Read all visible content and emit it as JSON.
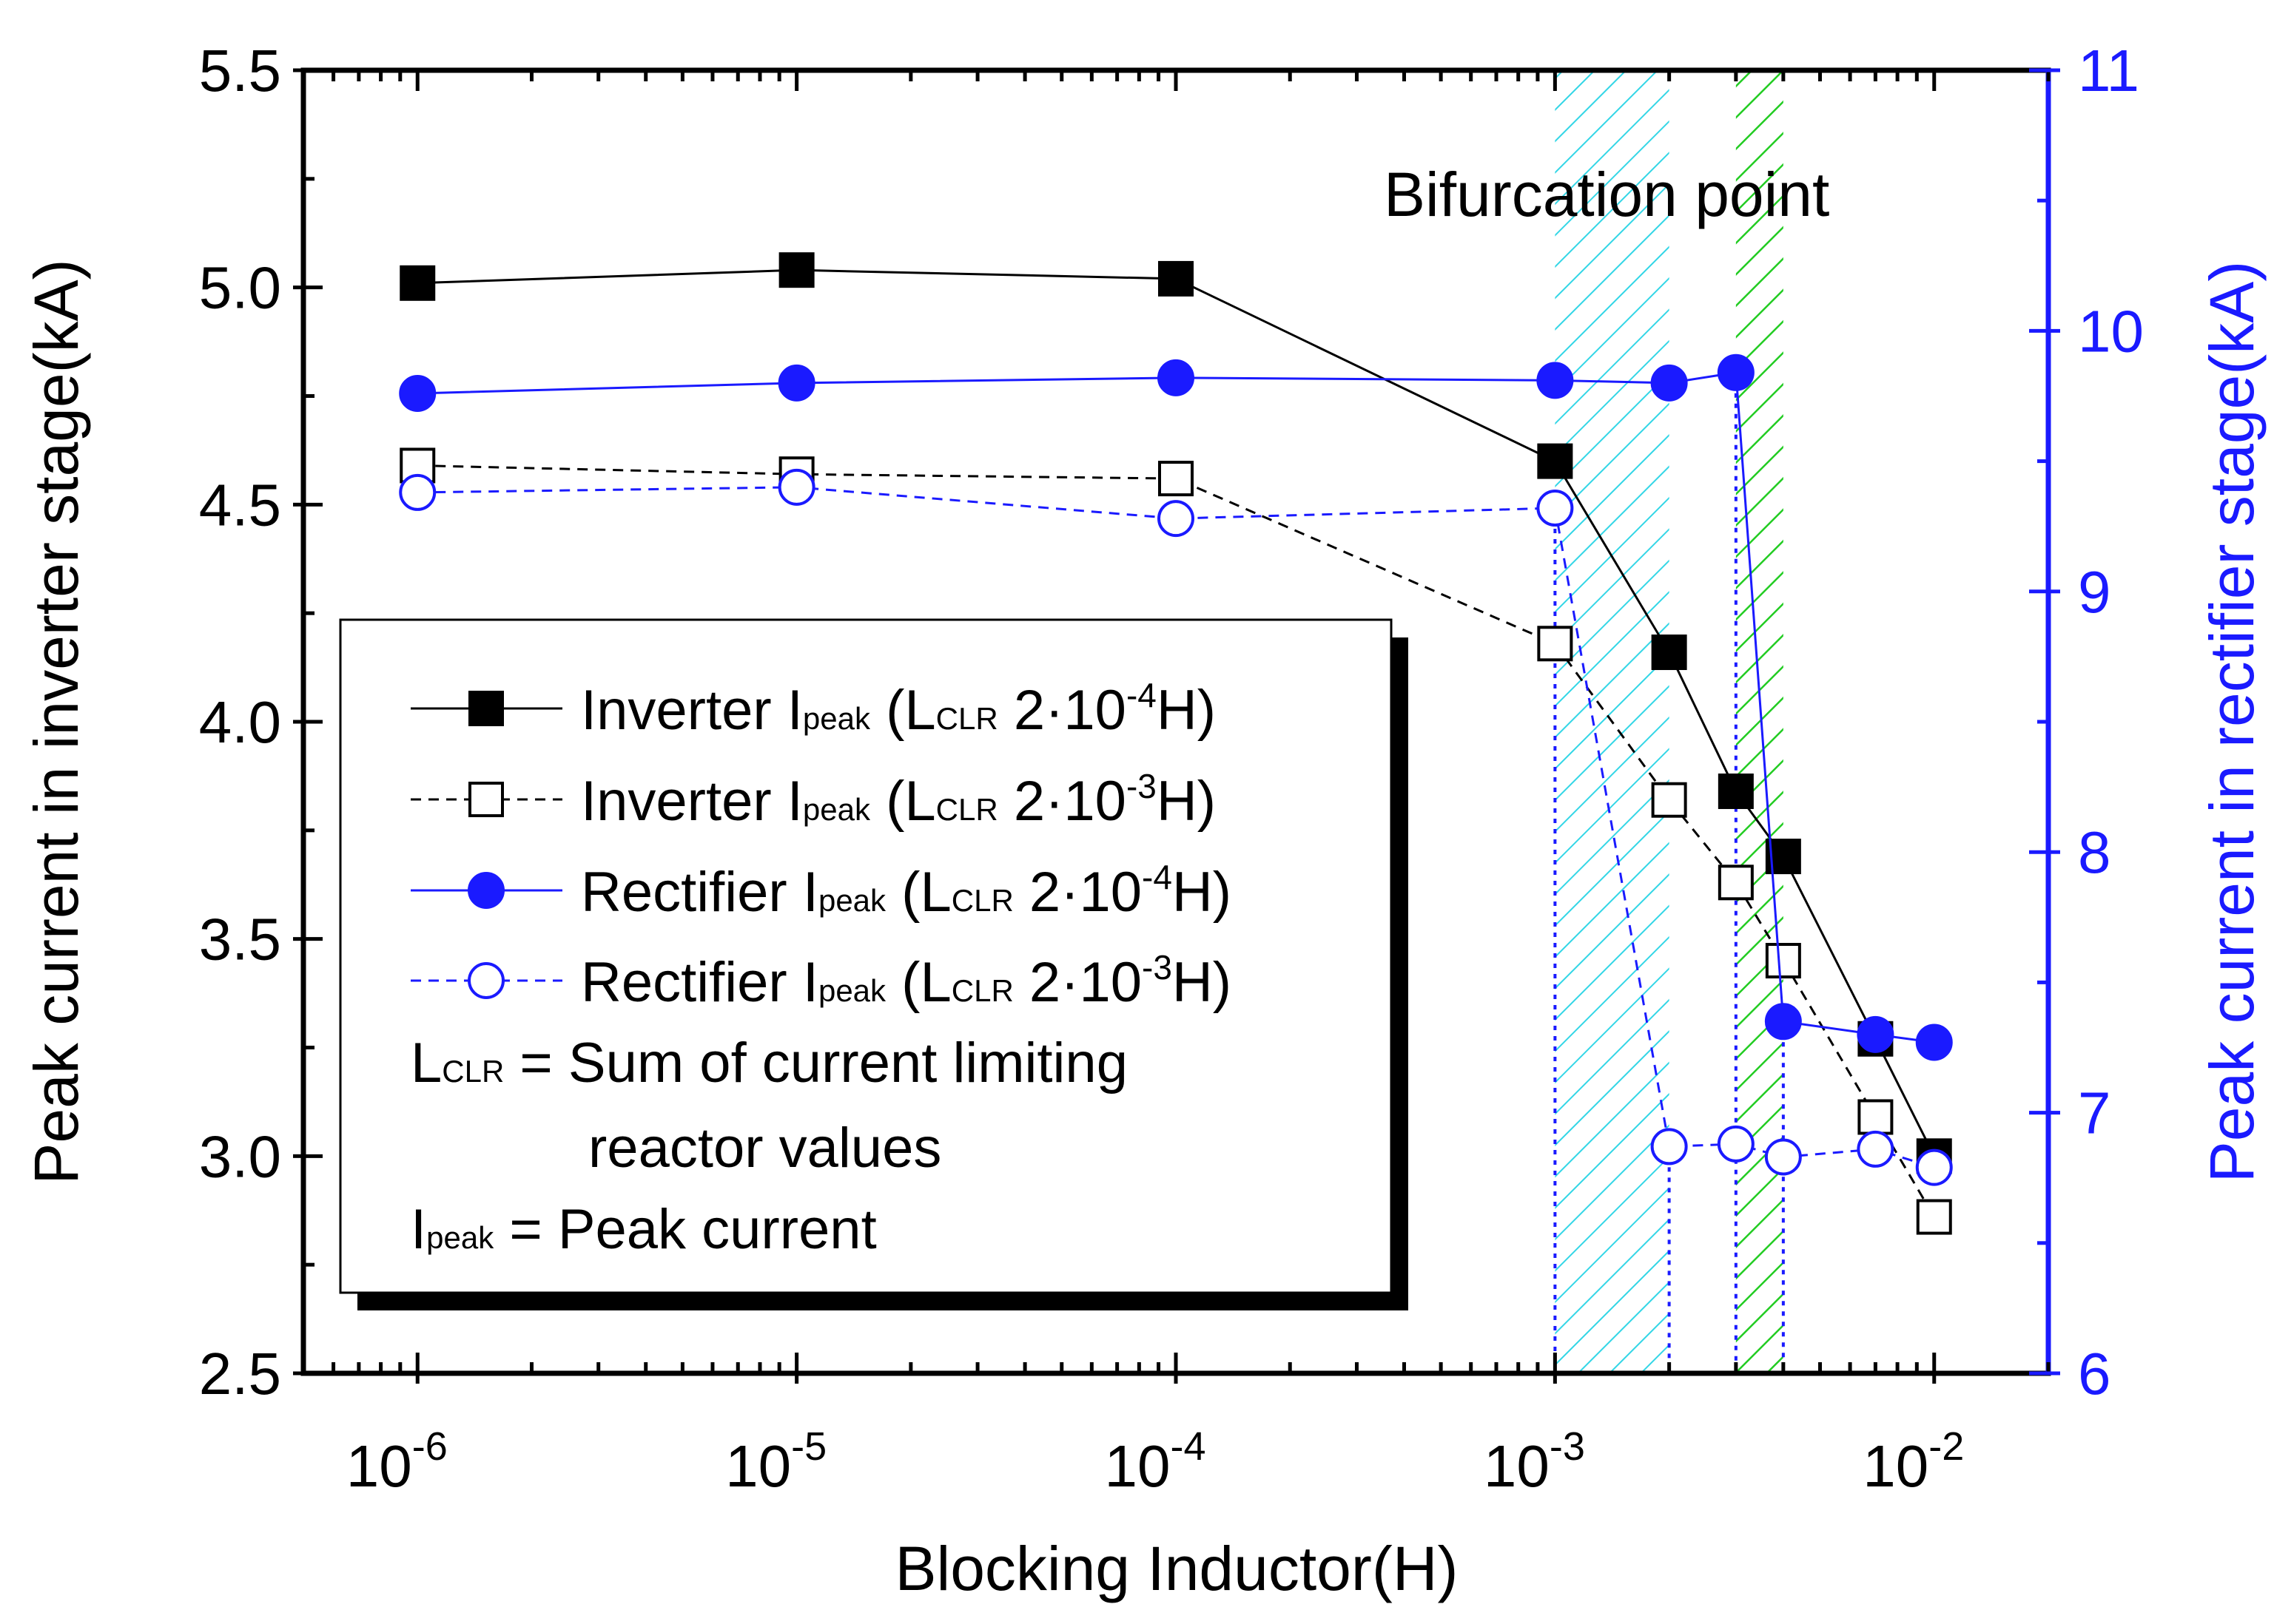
{
  "chart_data": {
    "type": "line",
    "title": "",
    "annotation": "Bifurcation point",
    "xlabel": "Blocking Inductor(H)",
    "ylabel": "Peak current in inverter stage(kA)",
    "y2label": "Peak current in rectifier stage(kA)",
    "xscale": "log",
    "xlim": [
      5e-07,
      0.02
    ],
    "ylim": [
      2.5,
      5.5
    ],
    "y2lim": [
      6,
      11
    ],
    "x_ticks": [
      {
        "value": 1e-06,
        "base": "10",
        "exp": "-6"
      },
      {
        "value": 1e-05,
        "base": "10",
        "exp": "-5"
      },
      {
        "value": 0.0001,
        "base": "10",
        "exp": "-4"
      },
      {
        "value": 0.001,
        "base": "10",
        "exp": "-3"
      },
      {
        "value": 0.01,
        "base": "10",
        "exp": "-2"
      }
    ],
    "y_ticks": [
      "2.5",
      "3.0",
      "3.5",
      "4.0",
      "4.5",
      "5.0",
      "5.5"
    ],
    "y2_ticks": [
      "6",
      "7",
      "8",
      "9",
      "10",
      "11"
    ],
    "shaded_regions": [
      {
        "x0": 0.001,
        "x1": 0.002,
        "color": "#33d6e6"
      },
      {
        "x0": 0.003,
        "x1": 0.004,
        "color": "#22cc22"
      }
    ],
    "series": [
      {
        "name": "Inverter Ipeak (LCLR 2·10-4H)",
        "axis": "left",
        "marker": "square-filled",
        "line": "solid",
        "color": "#000000",
        "x": [
          1e-06,
          1e-05,
          0.0001,
          0.001,
          0.002,
          0.003,
          0.004,
          0.007,
          0.01
        ],
        "values": [
          5.01,
          5.04,
          5.02,
          4.6,
          4.16,
          3.84,
          3.69,
          3.27,
          3.0
        ]
      },
      {
        "name": "Inverter Ipeak (LCLR 2·10-3H)",
        "axis": "left",
        "marker": "square-open",
        "line": "dash",
        "color": "#000000",
        "x": [
          1e-06,
          1e-05,
          0.0001,
          0.001,
          0.002,
          0.003,
          0.004,
          0.007,
          0.01
        ],
        "values": [
          4.59,
          4.57,
          4.56,
          4.18,
          3.82,
          3.63,
          3.45,
          3.09,
          2.86
        ]
      },
      {
        "name": "Rectifier Ipeak (LCLR 2·10-4H)",
        "axis": "right",
        "marker": "circle-filled",
        "line": "solid",
        "color": "#1a1aff",
        "x": [
          1e-06,
          1e-05,
          0.0001,
          0.001,
          0.002,
          0.003,
          0.004,
          0.007,
          0.01
        ],
        "values": [
          9.76,
          9.8,
          9.82,
          9.81,
          9.8,
          9.84,
          7.35,
          7.3,
          7.27
        ]
      },
      {
        "name": "Rectifier Ipeak (LCLR 2·10-3H)",
        "axis": "right",
        "marker": "circle-open",
        "line": "dash",
        "color": "#1a1aff",
        "x": [
          1e-06,
          1e-05,
          0.0001,
          0.001,
          0.002,
          0.003,
          0.004,
          0.007,
          0.01
        ],
        "values": [
          9.38,
          9.4,
          9.28,
          9.32,
          6.87,
          6.88,
          6.83,
          6.86,
          6.79
        ]
      }
    ],
    "legend": {
      "placement": "center-left",
      "entries": [
        {
          "prefix": "Inverter I",
          "isub": "peak",
          "open": " (L",
          "lsub": "CLR",
          "mid": " 2·10",
          "exp": "-4",
          "close": "H)"
        },
        {
          "prefix": "Inverter I",
          "isub": "peak",
          "open": " (L",
          "lsub": "CLR",
          "mid": " 2·10",
          "exp": "-3",
          "close": "H)"
        },
        {
          "prefix": "Rectifier I",
          "isub": "peak",
          "open": " (L",
          "lsub": "CLR",
          "mid": " 2·10",
          "exp": "-4",
          "close": "H)"
        },
        {
          "prefix": "Rectifier I",
          "isub": "peak",
          "open": " (L",
          "lsub": "CLR",
          "mid": " 2·10",
          "exp": "-3",
          "close": "H)"
        }
      ],
      "notes": {
        "lclr_sym": "L",
        "lclr_sub": "CLR",
        "lclr_line1": " = Sum of current limiting",
        "lclr_line2": "reactor values",
        "ipeak_sym": "I",
        "ipeak_sub": "peak",
        "ipeak_text": "  = Peak current"
      }
    }
  }
}
